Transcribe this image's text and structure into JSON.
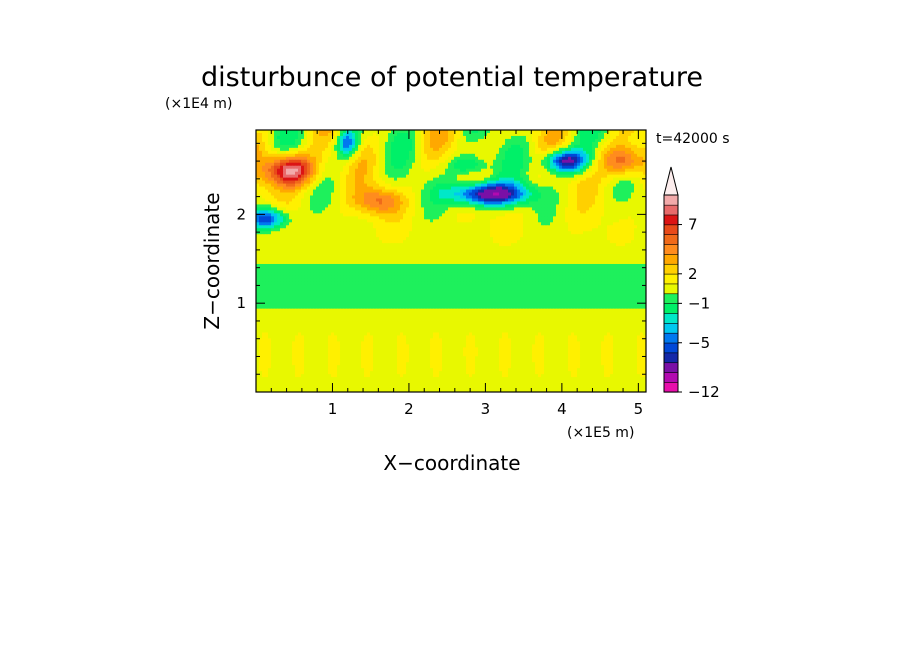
{
  "chart_data": {
    "type": "heatmap",
    "title": "disturbunce of potential temperature",
    "xlabel": "X−coordinate",
    "ylabel": "Z−coordinate",
    "x_unit": "(×1E5 m)",
    "y_unit": "(×1E4 m)",
    "time_label": "t=42000 s",
    "xlim": [
      0,
      5.1
    ],
    "ylim": [
      0,
      2.95
    ],
    "x_ticks": [
      "1",
      "2",
      "3",
      "4",
      "5"
    ],
    "y_ticks": [
      "1",
      "2"
    ],
    "colorbar": {
      "levels": [
        -12,
        -11,
        -9,
        -7,
        -6,
        -5,
        -4,
        -3,
        -2,
        -1,
        0,
        1,
        2,
        3,
        4,
        5,
        6,
        7,
        8,
        9,
        10
      ],
      "colors": [
        "#e80eab",
        "#b30ab0",
        "#7a10a6",
        "#1428a8",
        "#0048d8",
        "#0078f0",
        "#00c8f0",
        "#00e8c8",
        "#00f068",
        "#1ef05c",
        "#e8f800",
        "#fff000",
        "#ffd000",
        "#ffa800",
        "#ff8c1e",
        "#f06a1a",
        "#e84a1a",
        "#dc1414",
        "#e86a6a",
        "#f2aaaa"
      ],
      "tick_labels": [
        "7",
        "2",
        "−1",
        "−5",
        "−12"
      ],
      "tick_values": [
        7,
        2,
        -1,
        -5,
        -12
      ],
      "extend": "max"
    }
  }
}
